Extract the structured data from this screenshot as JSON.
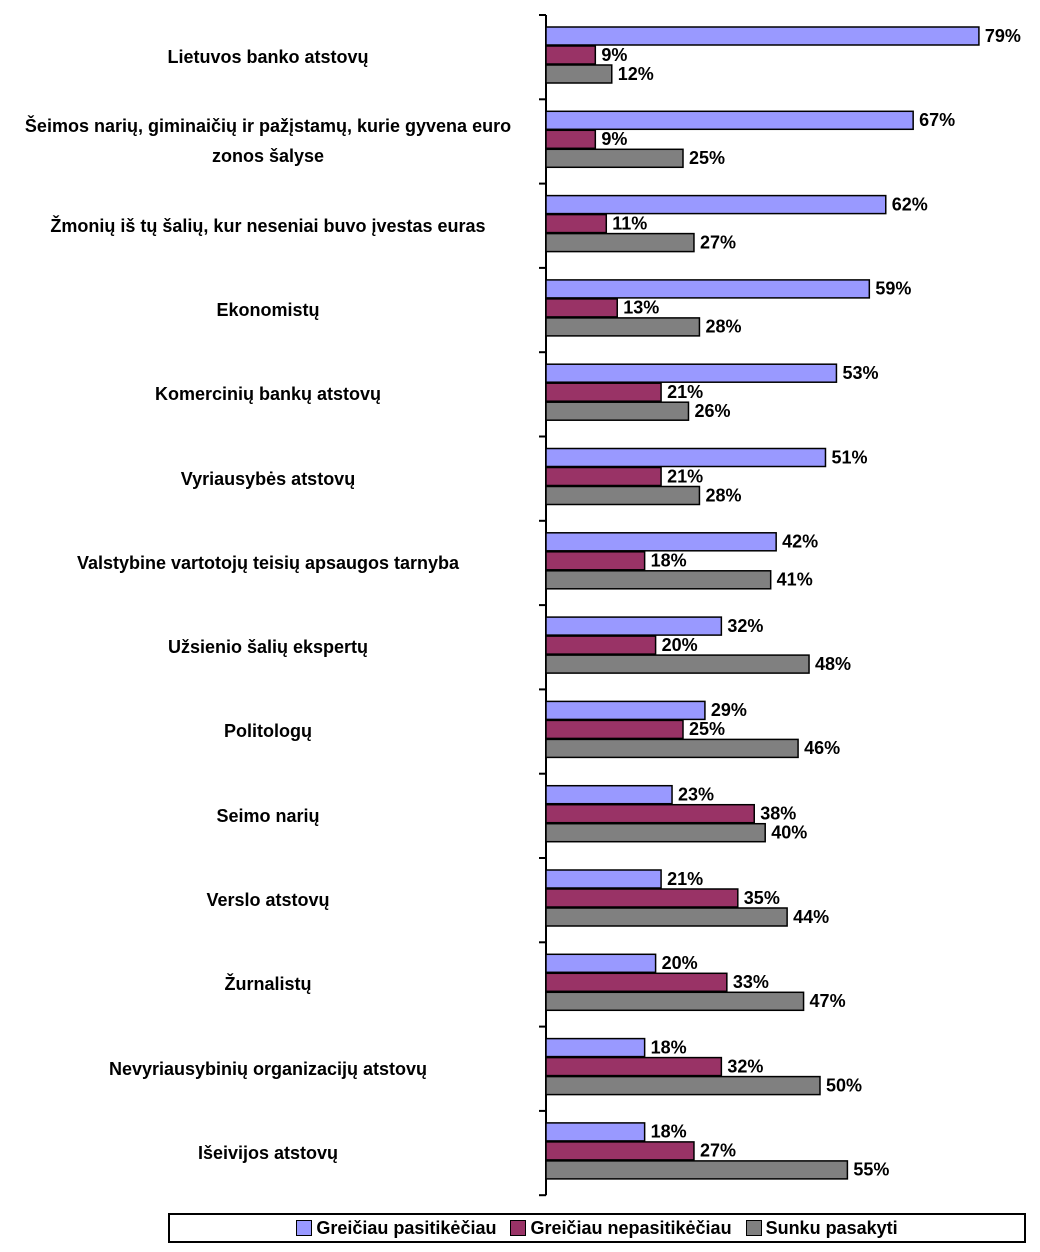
{
  "chart_data": {
    "type": "bar",
    "orientation": "horizontal",
    "categories": [
      "Lietuvos banko atstovų",
      "Šeimos narių, giminaičių ir pažįstamų, kurie gyvena euro zonos šalyse",
      "Žmonių iš tų šalių, kur neseniai buvo įvestas euras",
      "Ekonomistų",
      "Komercinių bankų atstovų",
      "Vyriausybės atstovų",
      "Valstybine vartotojų teisių apsaugos tarnyba",
      "Užsienio šalių ekspertų",
      "Politologų",
      "Seimo narių",
      "Verslo atstovų",
      "Žurnalistų",
      "Nevyriausybinių organizacijų atstovų",
      "Išeivijos atstovų"
    ],
    "series": [
      {
        "name": "Greičiau pasitikėčiau",
        "color": "#9999ff",
        "values": [
          79,
          67,
          62,
          59,
          53,
          51,
          42,
          32,
          29,
          23,
          21,
          20,
          18,
          18
        ],
        "value_labels": [
          "79%",
          "67%",
          "62%",
          "59%",
          "53%",
          "51%",
          "42%",
          "32%",
          "29%",
          "23%",
          "21%",
          "20%",
          "18%",
          "18%"
        ]
      },
      {
        "name": "Greičiau nepasitikėčiau",
        "color": "#993366",
        "values": [
          9,
          9,
          11,
          13,
          21,
          21,
          18,
          20,
          25,
          38,
          35,
          33,
          32,
          27
        ],
        "value_labels": [
          "9%",
          "9%",
          "11%",
          "13%",
          "21%",
          "21%",
          "18%",
          "20%",
          "25%",
          "38%",
          "35%",
          "33%",
          "32%",
          "27%"
        ]
      },
      {
        "name": "Sunku pasakyti",
        "color": "#808080",
        "values": [
          12,
          25,
          27,
          28,
          26,
          28,
          41,
          48,
          46,
          40,
          44,
          47,
          50,
          55
        ],
        "value_labels": [
          "12%",
          "25%",
          "27%",
          "28%",
          "26%",
          "28%",
          "41%",
          "48%",
          "46%",
          "40%",
          "44%",
          "47%",
          "50%",
          "55%"
        ]
      }
    ],
    "legend": "bottom"
  }
}
